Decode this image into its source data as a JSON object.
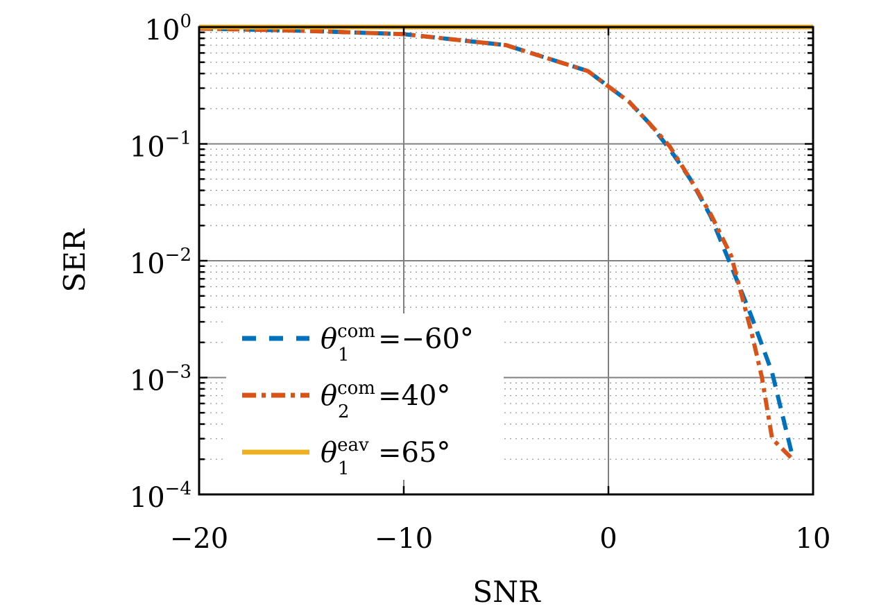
{
  "chart_data": {
    "type": "line",
    "title": "",
    "xlabel": "SNR",
    "ylabel": "SER",
    "xlim": [
      -20,
      10
    ],
    "ylim": [
      0.0001,
      1
    ],
    "yscale": "log",
    "grid": true,
    "legend_position": "bottom-left",
    "x_ticks": [
      {
        "value": -20,
        "label": "−20"
      },
      {
        "value": -10,
        "label": "−10"
      },
      {
        "value": 0,
        "label": "0"
      },
      {
        "value": 10,
        "label": "10"
      }
    ],
    "y_ticks": [
      {
        "value": 1,
        "base": "10",
        "exp": "0"
      },
      {
        "value": 0.1,
        "base": "10",
        "exp": "−1"
      },
      {
        "value": 0.01,
        "base": "10",
        "exp": "−2"
      },
      {
        "value": 0.001,
        "base": "10",
        "exp": "−3"
      },
      {
        "value": 0.0001,
        "base": "10",
        "exp": "−4"
      }
    ],
    "series": [
      {
        "name": "theta1-com",
        "legend": {
          "symbol": "θ",
          "sub": "1",
          "sup": "com",
          "rest": "=−60°"
        },
        "color": "#0072BD",
        "dash": "dashed",
        "x": [
          -20,
          -15,
          -10,
          -5,
          -1,
          0,
          1,
          2,
          3,
          4,
          5,
          6,
          7,
          8,
          9
        ],
        "y": [
          0.97,
          0.93,
          0.87,
          0.7,
          0.42,
          0.31,
          0.23,
          0.15,
          0.09,
          0.05,
          0.024,
          0.009,
          0.0033,
          0.0011,
          0.00021
        ]
      },
      {
        "name": "theta2-com",
        "legend": {
          "symbol": "θ",
          "sub": "2",
          "sup": "com",
          "rest": "=40°"
        },
        "color": "#D95319",
        "dash": "dashdot",
        "x": [
          -20,
          -15,
          -10,
          -5,
          -1,
          0,
          1,
          2,
          3,
          4,
          5,
          6,
          7,
          7.5,
          8,
          9
        ],
        "y": [
          0.97,
          0.93,
          0.87,
          0.7,
          0.42,
          0.31,
          0.23,
          0.15,
          0.095,
          0.05,
          0.025,
          0.011,
          0.0024,
          0.001,
          0.0003,
          0.0002
        ]
      },
      {
        "name": "theta1-eav",
        "legend": {
          "symbol": "θ",
          "sub": "1",
          "sup": "eav",
          "rest": "=65°"
        },
        "color": "#EDB120",
        "dash": "solid",
        "x": [
          -20,
          10
        ],
        "y": [
          1,
          1
        ]
      }
    ]
  }
}
